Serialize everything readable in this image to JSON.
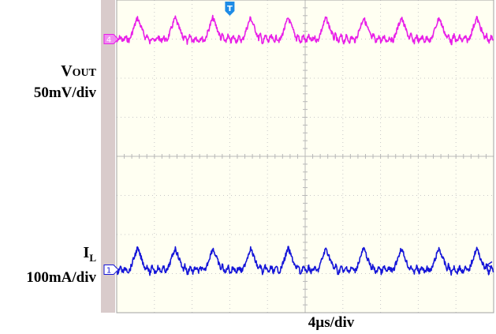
{
  "chart_data": {
    "type": "line",
    "title": "",
    "timebase": "4µs/div",
    "grid": true,
    "divisions": {
      "x": 10,
      "y": 8
    },
    "channels": [
      {
        "id": "4",
        "name_main": "V",
        "name_small": "OUT",
        "scale": "50mV/div",
        "color": "#e81ee8",
        "marker": "4",
        "offset_div": 3.0,
        "ripple_period_div": 1.0,
        "spike_mv": 50,
        "ringing_mv": 10
      },
      {
        "id": "1",
        "name_main": "I",
        "name_sub": "L",
        "scale": "100mA/div",
        "color": "#1515d8",
        "marker": "1",
        "offset_div": -2.9,
        "ripple_period_div": 1.0,
        "spike_ma": 100,
        "ringing_ma": 20
      }
    ],
    "trigger_marker": "T"
  }
}
